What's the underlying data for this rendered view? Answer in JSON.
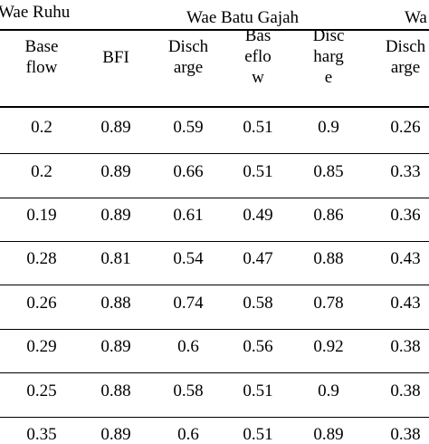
{
  "table": {
    "groups": [
      "Wae Ruhu",
      "Wae Batu Gajah",
      "Wa"
    ],
    "columns": [
      "Base\nflow",
      "BFI",
      "Disch\narge",
      "Bas\neflo\nw",
      "Disc\nharg\ne",
      "Disch\narge"
    ],
    "rows": [
      [
        "0.2",
        "0.89",
        "0.59",
        "0.51",
        "0.9",
        "0.26"
      ],
      [
        "0.2",
        "0.89",
        "0.66",
        "0.51",
        "0.85",
        "0.33"
      ],
      [
        "0.19",
        "0.89",
        "0.61",
        "0.49",
        "0.86",
        "0.36"
      ],
      [
        "0.28",
        "0.81",
        "0.54",
        "0.47",
        "0.88",
        "0.43"
      ],
      [
        "0.26",
        "0.88",
        "0.74",
        "0.58",
        "0.78",
        "0.43"
      ],
      [
        "0.29",
        "0.89",
        "0.6",
        "0.56",
        "0.92",
        "0.38"
      ],
      [
        "0.25",
        "0.88",
        "0.58",
        "0.51",
        "0.9",
        "0.38"
      ],
      [
        "0.35",
        "0.89",
        "0.6",
        "0.51",
        "0.89",
        "0.38"
      ]
    ]
  }
}
